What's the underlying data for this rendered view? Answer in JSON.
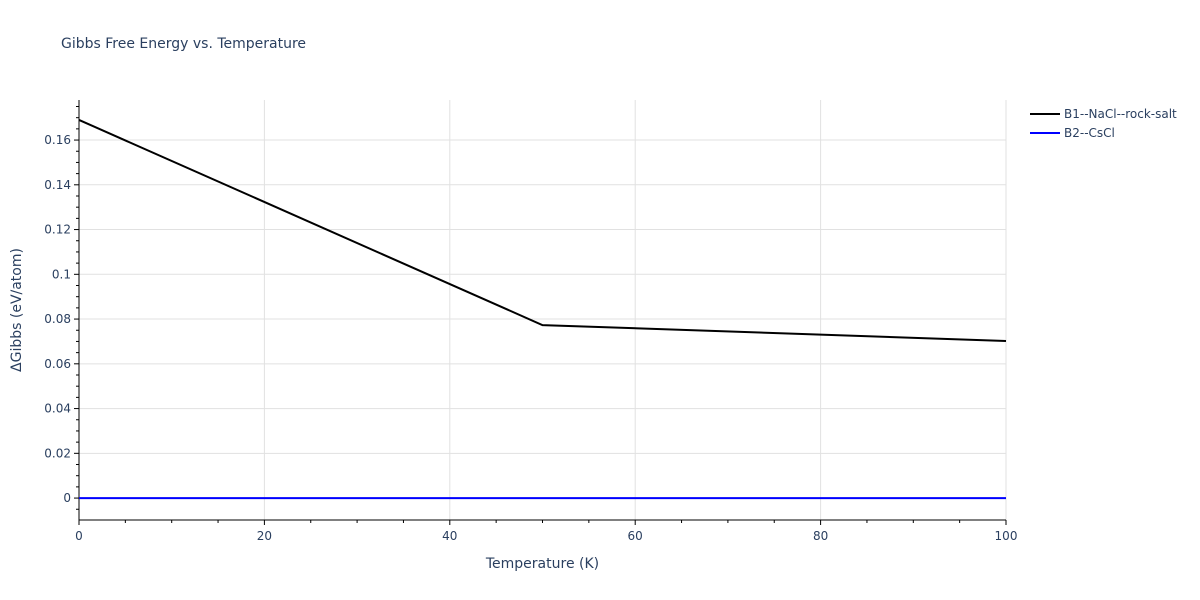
{
  "chart_data": {
    "type": "line",
    "title": "Gibbs Free Energy vs. Temperature",
    "xlabel": "Temperature (K)",
    "ylabel": "ΔGibbs (eV/atom)",
    "xlim": [
      0,
      100
    ],
    "ylim": [
      -0.0098,
      0.1779
    ],
    "xticks": [
      0,
      20,
      40,
      60,
      80,
      100
    ],
    "yticks": [
      0,
      0.02,
      0.04,
      0.06,
      0.08,
      0.1,
      0.12,
      0.14,
      0.16
    ],
    "ytick_labels": [
      "0",
      "0.02",
      "0.04",
      "0.06",
      "0.08",
      "0.1",
      "0.12",
      "0.14",
      "0.16"
    ],
    "grid": true,
    "legend_position": "top-right",
    "series": [
      {
        "name": "B1--NaCl--rock-salt",
        "color": "#000000",
        "x": [
          0,
          50,
          100
        ],
        "y": [
          0.169,
          0.0773,
          0.0702
        ]
      },
      {
        "name": "B2--CsCl",
        "color": "#0000ff",
        "x": [
          0,
          100
        ],
        "y": [
          0,
          0
        ]
      }
    ]
  }
}
